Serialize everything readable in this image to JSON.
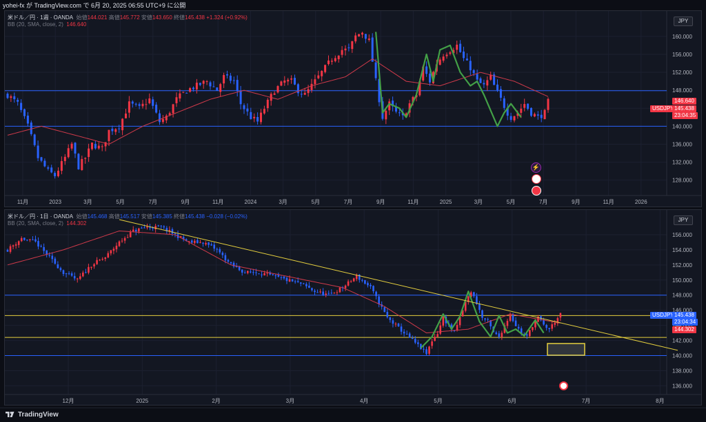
{
  "header": {
    "publish_text": "yohei-fx が TradingView.com で 6月 20, 2025 06:55 UTC+9 に公開"
  },
  "colors": {
    "up": "#f23645",
    "down": "#2962ff",
    "bb": "#d03a4a",
    "hline_blue": "#2962ff",
    "hline_yellow": "#e6d03e",
    "wave": "#43a047",
    "price_label": "#f23645",
    "price_label_blue": "#2962ff"
  },
  "pane1": {
    "legend": {
      "symbol": "米ドル／円 · 1週 · OANDA",
      "open_label": "始値",
      "open": "144.021",
      "high_label": "高値",
      "high": "145.772",
      "low_label": "安値",
      "low": "143.650",
      "close_label": "終値",
      "close": "145.438",
      "change": "+1.324 (+0.92%)"
    },
    "bb_legend": {
      "name": "BB (20, SMA, close, 2)",
      "value": "146.640"
    },
    "currency": "JPY",
    "price_tags": {
      "bb": "146.640",
      "symbol": "USDJPY",
      "close": "145.438",
      "countdown": "23:04:35"
    }
  },
  "pane2": {
    "legend": {
      "symbol": "米ドル／円 · 1日 · OANDA",
      "open_label": "始値",
      "open": "145.468",
      "high_label": "高値",
      "high": "145.517",
      "low_label": "安値",
      "low": "145.385",
      "close_label": "終値",
      "close": "145.438",
      "change": "−0.028 (−0.02%)"
    },
    "bb_legend": {
      "name": "BB (20, SMA, close, 2)",
      "value": "144.302"
    },
    "currency": "JPY",
    "price_tags": {
      "symbol": "USDJPY",
      "close": "145.438",
      "countdown": "23:04:34",
      "bb": "144.302"
    }
  },
  "chart_data": [
    {
      "type": "candlestick",
      "timeframe": "1W",
      "x_ticks": [
        "11月",
        "2023",
        "3月",
        "5月",
        "7月",
        "9月",
        "11月",
        "2024",
        "3月",
        "5月",
        "7月",
        "9月",
        "11月",
        "2025",
        "3月",
        "5月",
        "7月",
        "9月",
        "11月",
        "2026"
      ],
      "y_ticks": [
        "128.000",
        "132.000",
        "136.000",
        "140.000",
        "144.000",
        "148.000",
        "152.000",
        "156.000",
        "160.000"
      ],
      "ylim": [
        125.5,
        163.5
      ],
      "close_path": [
        [
          0,
          147
        ],
        [
          3,
          145
        ],
        [
          6,
          140
        ],
        [
          9,
          133
        ],
        [
          12,
          130
        ],
        [
          14,
          129
        ],
        [
          17,
          133
        ],
        [
          19,
          136
        ],
        [
          21,
          131
        ],
        [
          23,
          133
        ],
        [
          25,
          136
        ],
        [
          28,
          135
        ],
        [
          30,
          139
        ],
        [
          33,
          140
        ],
        [
          36,
          145
        ],
        [
          39,
          144
        ],
        [
          42,
          146
        ],
        [
          45,
          141
        ],
        [
          47,
          142
        ],
        [
          50,
          146
        ],
        [
          53,
          148
        ],
        [
          56,
          149
        ],
        [
          59,
          150
        ],
        [
          62,
          148
        ],
        [
          64,
          151
        ],
        [
          67,
          150
        ],
        [
          69,
          145
        ],
        [
          72,
          142
        ],
        [
          74,
          141
        ],
        [
          76,
          144
        ],
        [
          79,
          148
        ],
        [
          82,
          150
        ],
        [
          84,
          150
        ],
        [
          86,
          148
        ],
        [
          88,
          147
        ],
        [
          91,
          150
        ],
        [
          93,
          152
        ],
        [
          96,
          155
        ],
        [
          99,
          157
        ],
        [
          101,
          157
        ],
        [
          103,
          160
        ],
        [
          105,
          161
        ],
        [
          107,
          159
        ],
        [
          109,
          150
        ],
        [
          110,
          146
        ],
        [
          111,
          142
        ],
        [
          113,
          145
        ],
        [
          115,
          143
        ],
        [
          117,
          142
        ],
        [
          119,
          145
        ],
        [
          121,
          147
        ],
        [
          123,
          153
        ],
        [
          125,
          150
        ],
        [
          127,
          154
        ],
        [
          129,
          156
        ],
        [
          131,
          157
        ],
        [
          133,
          158
        ],
        [
          135,
          155
        ],
        [
          137,
          153
        ],
        [
          139,
          150
        ],
        [
          141,
          149
        ],
        [
          143,
          151
        ],
        [
          144,
          149
        ],
        [
          146,
          146
        ],
        [
          148,
          143
        ],
        [
          149,
          142
        ],
        [
          151,
          143
        ],
        [
          153,
          145
        ],
        [
          155,
          143
        ],
        [
          157,
          142
        ],
        [
          159,
          143
        ],
        [
          160,
          145.4
        ]
      ],
      "bb_middle_path": [
        [
          0,
          138
        ],
        [
          10,
          140
        ],
        [
          20,
          138
        ],
        [
          30,
          136
        ],
        [
          40,
          140
        ],
        [
          50,
          143
        ],
        [
          60,
          146
        ],
        [
          70,
          148
        ],
        [
          80,
          146
        ],
        [
          90,
          149
        ],
        [
          100,
          151
        ],
        [
          108,
          155
        ],
        [
          118,
          150
        ],
        [
          128,
          149
        ],
        [
          140,
          152
        ],
        [
          150,
          150
        ],
        [
          160,
          146.6
        ]
      ],
      "hlines": [
        {
          "value": 147.9,
          "color": "blue"
        },
        {
          "value": 140.0,
          "color": "blue"
        }
      ],
      "wave_path": [
        [
          109,
          161
        ],
        [
          111,
          143
        ],
        [
          113,
          145
        ],
        [
          116,
          144
        ],
        [
          118,
          142
        ],
        [
          121,
          147
        ],
        [
          124,
          156
        ],
        [
          126,
          150
        ],
        [
          128,
          157
        ],
        [
          131,
          158
        ],
        [
          134,
          152
        ],
        [
          137,
          149
        ],
        [
          139,
          150
        ],
        [
          141,
          147
        ],
        [
          145,
          140
        ],
        [
          147,
          143
        ],
        [
          149,
          145
        ],
        [
          152,
          142
        ]
      ]
    },
    {
      "type": "candlestick",
      "timeframe": "1D",
      "x_ticks": [
        "12月",
        "2025",
        "2月",
        "3月",
        "4月",
        "5月",
        "6月",
        "7月",
        "8月"
      ],
      "y_ticks": [
        "136.000",
        "138.000",
        "140.000",
        "142.000",
        "144.000",
        "146.000",
        "148.000",
        "150.000",
        "152.000",
        "154.000",
        "156.000"
      ],
      "ylim": [
        135.4,
        158.0
      ],
      "close_path": [
        [
          0,
          154
        ],
        [
          5,
          155.5
        ],
        [
          10,
          155
        ],
        [
          15,
          153
        ],
        [
          20,
          151
        ],
        [
          25,
          150
        ],
        [
          30,
          152
        ],
        [
          35,
          153
        ],
        [
          40,
          155
        ],
        [
          45,
          156.5
        ],
        [
          50,
          157
        ],
        [
          55,
          157
        ],
        [
          60,
          156
        ],
        [
          65,
          155
        ],
        [
          70,
          155
        ],
        [
          75,
          154
        ],
        [
          80,
          152
        ],
        [
          85,
          151
        ],
        [
          90,
          151
        ],
        [
          95,
          150.5
        ],
        [
          100,
          150
        ],
        [
          105,
          149.5
        ],
        [
          110,
          148.5
        ],
        [
          115,
          148
        ],
        [
          120,
          149
        ],
        [
          125,
          150.5
        ],
        [
          130,
          149
        ],
        [
          133,
          147
        ],
        [
          136,
          145
        ],
        [
          139,
          144
        ],
        [
          142,
          143
        ],
        [
          145,
          142
        ],
        [
          148,
          141
        ],
        [
          150,
          140.2
        ],
        [
          152,
          142
        ],
        [
          154,
          143
        ],
        [
          156,
          145
        ],
        [
          158,
          144
        ],
        [
          160,
          143
        ],
        [
          162,
          145
        ],
        [
          164,
          147
        ],
        [
          166,
          148.5
        ],
        [
          168,
          147
        ],
        [
          170,
          145
        ],
        [
          172,
          144.5
        ],
        [
          174,
          143
        ],
        [
          176,
          142.5
        ],
        [
          178,
          144
        ],
        [
          180,
          145.5
        ],
        [
          182,
          144
        ],
        [
          184,
          143
        ],
        [
          186,
          142.5
        ],
        [
          188,
          144
        ],
        [
          190,
          145
        ],
        [
          192,
          144
        ],
        [
          194,
          143.5
        ],
        [
          196,
          144.5
        ],
        [
          198,
          145.4
        ]
      ],
      "bb_middle_path": [
        [
          0,
          152
        ],
        [
          20,
          154
        ],
        [
          40,
          156.5
        ],
        [
          60,
          156
        ],
        [
          80,
          152
        ],
        [
          100,
          150.5
        ],
        [
          120,
          149
        ],
        [
          135,
          146.5
        ],
        [
          150,
          143
        ],
        [
          165,
          143.5
        ],
        [
          180,
          145.5
        ],
        [
          198,
          144.3
        ]
      ],
      "hlines": [
        {
          "value": 148.0,
          "color": "blue"
        },
        {
          "value": 145.3,
          "color": "yellow"
        },
        {
          "value": 142.4,
          "color": "yellow"
        },
        {
          "value": 140.0,
          "color": "blue"
        }
      ],
      "trendline": [
        [
          40,
          158
        ],
        [
          240,
          140.7
        ]
      ],
      "wave_path": [
        [
          148,
          141
        ],
        [
          152,
          142.5
        ],
        [
          156,
          145.5
        ],
        [
          159,
          143.5
        ],
        [
          162,
          145.2
        ],
        [
          165,
          148.5
        ],
        [
          169,
          144.5
        ],
        [
          173,
          142.5
        ],
        [
          176,
          145.3
        ],
        [
          179,
          143
        ],
        [
          182,
          143.5
        ],
        [
          185,
          142.6
        ],
        [
          189,
          144.7
        ],
        [
          192,
          143
        ]
      ]
    }
  ]
}
